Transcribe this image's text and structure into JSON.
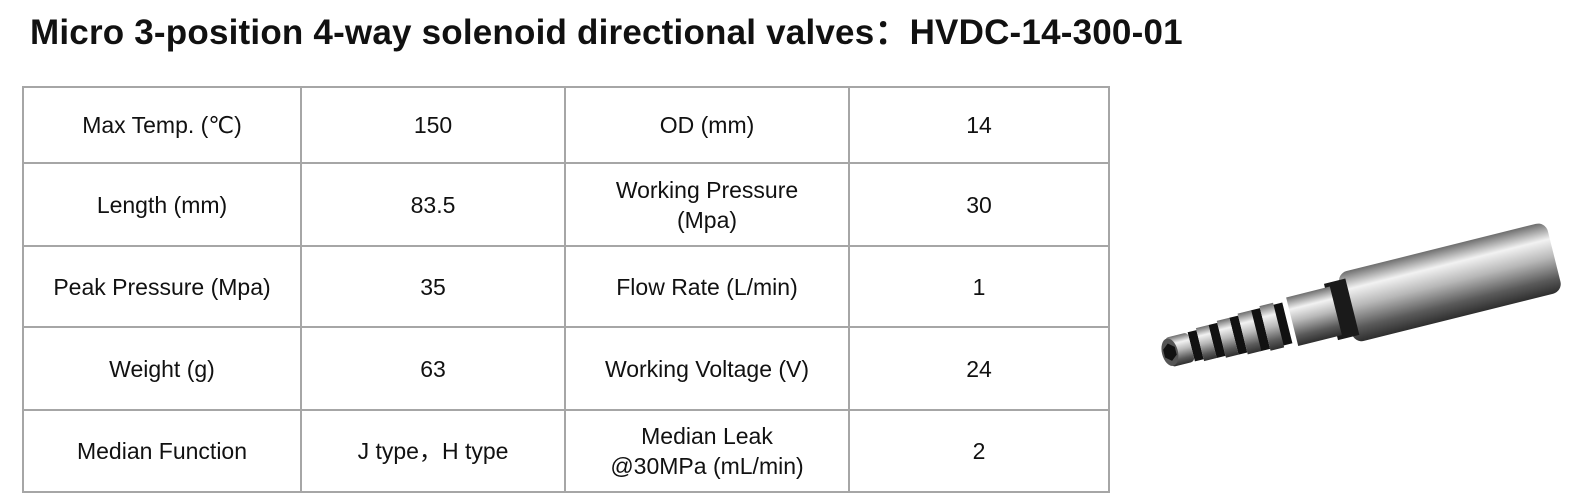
{
  "header": {
    "title": "Micro 3-position 4-way solenoid directional valves：HVDC-14-300-01"
  },
  "table": {
    "rows": [
      [
        "Max Temp. (℃)",
        "150",
        "OD (mm)",
        "14"
      ],
      [
        "Length (mm)",
        "83.5",
        "Working Pressure\n(Mpa)",
        "30"
      ],
      [
        "Peak Pressure (Mpa)",
        "35",
        "Flow Rate (L/min)",
        "1"
      ],
      [
        "Weight (g)",
        "63",
        "Working Voltage (V)",
        "24"
      ],
      [
        "Median Function",
        "J type，H type",
        "Median Leak\n@30MPa (mL/min)",
        "2"
      ]
    ]
  }
}
